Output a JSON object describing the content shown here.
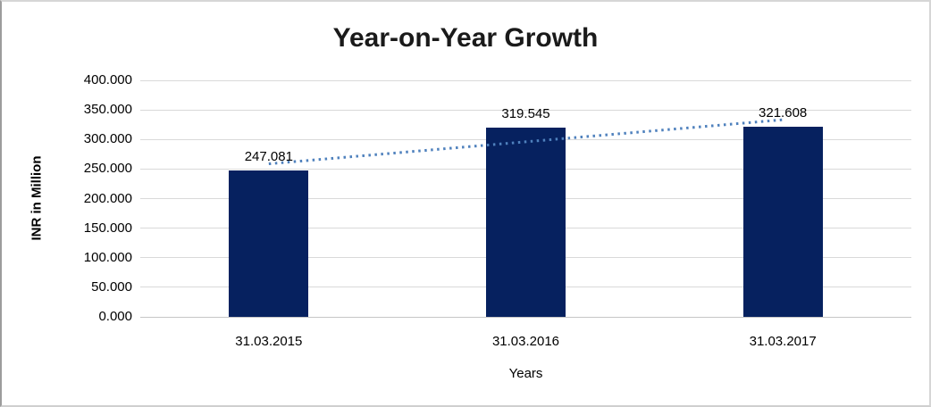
{
  "chart_data": {
    "type": "bar",
    "title": "Year-on-Year Growth",
    "xlabel": "Years",
    "ylabel": "INR in Million",
    "categories": [
      "31.03.2015",
      "31.03.2016",
      "31.03.2017"
    ],
    "values": [
      247.081,
      319.545,
      321.608
    ],
    "value_labels": [
      "247.081",
      "319.545",
      "321.608"
    ],
    "ylim": [
      0,
      400
    ],
    "ytick_step": 50,
    "ytick_labels": [
      "0.000",
      "50.000",
      "100.000",
      "150.000",
      "200.000",
      "250.000",
      "300.000",
      "350.000",
      "400.000"
    ],
    "grid": true,
    "legend": "none",
    "trendline": {
      "type": "linear",
      "style": "dotted"
    },
    "colors": {
      "bar": "#06215f",
      "trendline": "#4f81bd",
      "gridline": "#d9d9d9",
      "baseline": "#c6c6c6",
      "title_text": "#1a1a1a",
      "axis_text": "#000000",
      "background": "#ffffff",
      "frame_border": "#d6d6d6"
    }
  }
}
